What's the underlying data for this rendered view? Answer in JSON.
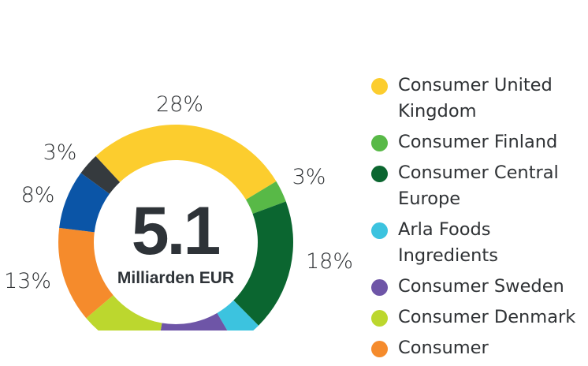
{
  "chart_data": {
    "type": "pie",
    "center_value": "5.1",
    "center_unit": "Milliarden EUR",
    "slices": [
      {
        "label": "Consumer United Kingdom",
        "value": 28,
        "display": "28%",
        "color": "#fccd2e"
      },
      {
        "label": "Consumer Finland",
        "value": 3,
        "display": "3%",
        "color": "#58b947"
      },
      {
        "label": "Consumer Central Europe",
        "value": 18,
        "display": "18%",
        "color": "#0b6630"
      },
      {
        "label": "Arla Foods Ingredients",
        "value": 4,
        "display": "",
        "color": "#3cc3df"
      },
      {
        "label": "Consumer Sweden",
        "value": 11,
        "display": "",
        "color": "#6e55a7"
      },
      {
        "label": "Consumer Denmark",
        "value": 11,
        "display": "",
        "color": "#bcd72e"
      },
      {
        "label": "Consumer",
        "value": 13,
        "display": "13%",
        "color": "#f58b2c"
      },
      {
        "label": "",
        "value": 8,
        "display": "8%",
        "color": "#0b55a7"
      },
      {
        "label": "",
        "value": 3,
        "display": "3%",
        "color": "#353a3e"
      }
    ],
    "legend_placement": "right"
  }
}
